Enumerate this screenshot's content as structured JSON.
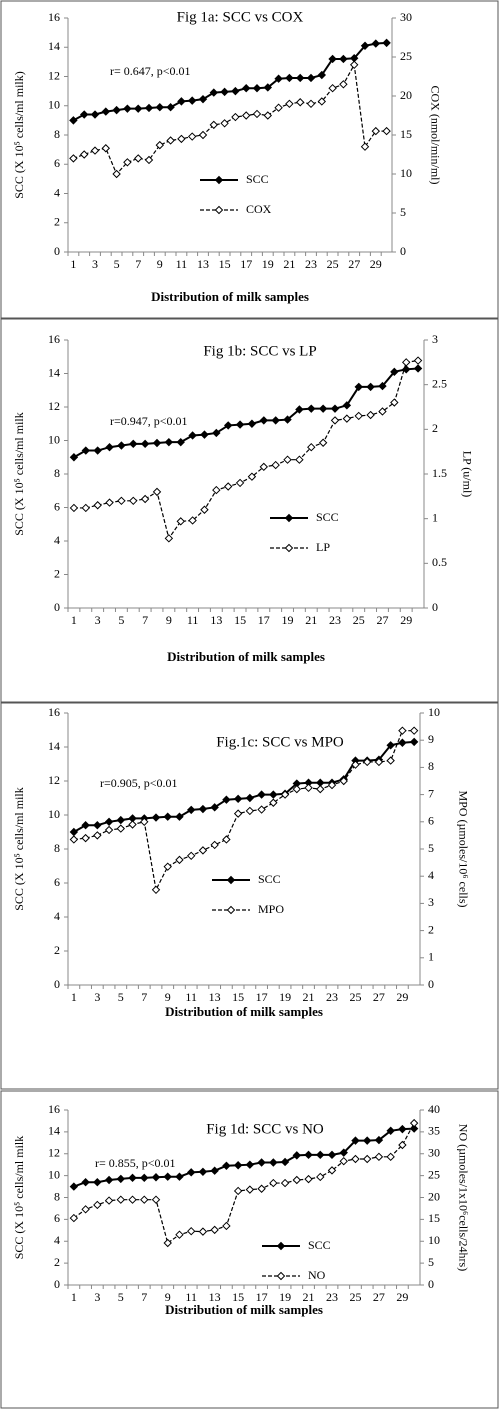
{
  "chart_data": [
    {
      "type": "line",
      "title": "Fig 1a: SCC vs COX",
      "annotation": "r= 0.647, p<0.01",
      "x_label": "Distribution of milk samples",
      "y_label": "SCC (X 10⁵ cells/ml milk)",
      "y2_label": "COX (nmol/min/ml)",
      "categories": [
        "1",
        null,
        "3",
        null,
        "5",
        null,
        "7",
        null,
        "9",
        null,
        "11",
        null,
        "13",
        null,
        "15",
        null,
        "17",
        null,
        "19",
        null,
        "21",
        null,
        "23",
        null,
        "25",
        null,
        "27",
        null,
        "29",
        null
      ],
      "ylim": [
        0,
        16
      ],
      "yticks": [
        0,
        2,
        4,
        6,
        8,
        10,
        12,
        14,
        16
      ],
      "y2lim": [
        0,
        30
      ],
      "y2ticks": [
        0,
        5,
        10,
        15,
        20,
        25,
        30
      ],
      "series": [
        {
          "name": "SCC",
          "color": "#000000",
          "dashed": false,
          "marker_filled": true,
          "values": [
            9.0,
            9.4,
            9.4,
            9.6,
            9.7,
            9.8,
            9.8,
            9.85,
            9.9,
            9.9,
            10.3,
            10.35,
            10.45,
            10.9,
            10.95,
            11.0,
            11.2,
            11.2,
            11.25,
            11.85,
            11.9,
            11.9,
            11.9,
            12.1,
            13.2,
            13.2,
            13.25,
            14.1,
            14.25,
            14.3
          ]
        },
        {
          "name": "COX",
          "color": "#000000",
          "dashed": true,
          "marker_filled": false,
          "axis": "y2",
          "values": [
            12,
            12.5,
            13,
            13.3,
            10,
            11.5,
            12,
            11.8,
            13.7,
            14.3,
            14.5,
            14.8,
            15,
            16.3,
            16.5,
            17.3,
            17.5,
            17.7,
            17.5,
            18.5,
            19,
            19.2,
            19,
            19.3,
            21,
            21.5,
            24,
            13.5,
            15.5,
            15.5
          ]
        }
      ]
    },
    {
      "type": "line",
      "title": "Fig 1b: SCC vs LP",
      "annotation": "r=0.947, p<0.01",
      "x_label": "Distribution of milk samples",
      "y_label": "SCC (X 10⁵ cells/ml milk",
      "y2_label": "LP (u/ml)",
      "categories": [
        "1",
        null,
        "3",
        null,
        "5",
        null,
        "7",
        null,
        "9",
        null,
        "11",
        null,
        "13",
        null,
        "15",
        null,
        "17",
        null,
        "19",
        null,
        "21",
        null,
        "23",
        null,
        "25",
        null,
        "27",
        null,
        "29",
        null
      ],
      "ylim": [
        0,
        16
      ],
      "yticks": [
        0,
        2,
        4,
        6,
        8,
        10,
        12,
        14,
        16
      ],
      "y2lim": [
        0,
        3
      ],
      "y2ticks": [
        0,
        0.5,
        1,
        1.5,
        2,
        2.5,
        3
      ],
      "series": [
        {
          "name": "SCC",
          "color": "#000000",
          "dashed": false,
          "marker_filled": true,
          "values": [
            9.0,
            9.4,
            9.4,
            9.6,
            9.7,
            9.8,
            9.8,
            9.85,
            9.9,
            9.9,
            10.3,
            10.35,
            10.45,
            10.9,
            10.95,
            11.0,
            11.2,
            11.2,
            11.25,
            11.85,
            11.9,
            11.9,
            11.9,
            12.1,
            13.2,
            13.2,
            13.25,
            14.1,
            14.25,
            14.3
          ]
        },
        {
          "name": "LP",
          "color": "#000000",
          "dashed": true,
          "marker_filled": false,
          "axis": "y2",
          "values": [
            1.12,
            1.12,
            1.15,
            1.18,
            1.2,
            1.2,
            1.22,
            1.3,
            0.78,
            0.97,
            0.98,
            1.1,
            1.32,
            1.36,
            1.4,
            1.47,
            1.58,
            1.6,
            1.66,
            1.66,
            1.8,
            1.85,
            2.1,
            2.12,
            2.15,
            2.16,
            2.2,
            2.3,
            2.75,
            2.77
          ]
        }
      ]
    },
    {
      "type": "line",
      "title": "Fig.1c: SCC vs MPO",
      "annotation": "r=0.905, p<0.01",
      "x_label": "Distribution of milk samples",
      "y_label": "SCC (X 10⁵ cells/ml milk",
      "y2_label": "MPO (µmoles/10⁶ cells)",
      "categories": [
        "1",
        null,
        "3",
        null,
        "5",
        null,
        "7",
        null,
        "9",
        null,
        "11",
        null,
        "13",
        null,
        "15",
        null,
        "17",
        null,
        "19",
        null,
        "21",
        null,
        "23",
        null,
        "25",
        null,
        "27",
        null,
        "29",
        null
      ],
      "ylim": [
        0,
        16
      ],
      "yticks": [
        0,
        2,
        4,
        6,
        8,
        10,
        12,
        14,
        16
      ],
      "y2lim": [
        0,
        10
      ],
      "y2ticks": [
        0,
        1,
        2,
        3,
        4,
        5,
        6,
        7,
        8,
        9,
        10
      ],
      "series": [
        {
          "name": "SCC",
          "color": "#000000",
          "dashed": false,
          "marker_filled": true,
          "values": [
            9.0,
            9.4,
            9.4,
            9.6,
            9.7,
            9.8,
            9.8,
            9.85,
            9.9,
            9.9,
            10.3,
            10.35,
            10.45,
            10.9,
            10.95,
            11.0,
            11.2,
            11.2,
            11.25,
            11.85,
            11.9,
            11.9,
            11.9,
            12.1,
            13.2,
            13.2,
            13.25,
            14.1,
            14.25,
            14.3
          ]
        },
        {
          "name": "MPO",
          "color": "#000000",
          "dashed": true,
          "marker_filled": false,
          "axis": "y2",
          "values": [
            5.35,
            5.4,
            5.5,
            5.7,
            5.75,
            5.9,
            6.0,
            3.5,
            4.35,
            4.6,
            4.75,
            4.95,
            5.15,
            5.35,
            6.3,
            6.4,
            6.45,
            6.7,
            7.0,
            7.2,
            7.25,
            7.2,
            7.35,
            7.5,
            8.1,
            8.2,
            8.2,
            8.25,
            9.35,
            9.35
          ]
        }
      ]
    },
    {
      "type": "line",
      "title": "Fig 1d: SCC vs NO",
      "annotation": "r= 0.855, p<0.01",
      "x_label": "Distribution of milk samples",
      "y_label": "SCC (X 10⁵ cells/ml milk",
      "y2_label": "NO (µmoles/1x10⁶cells/24hrs)",
      "categories": [
        "1",
        null,
        "3",
        null,
        "5",
        null,
        "7",
        null,
        "9",
        null,
        "11",
        null,
        "13",
        null,
        "15",
        null,
        "17",
        null,
        "19",
        null,
        "21",
        null,
        "23",
        null,
        "25",
        null,
        "27",
        null,
        "29",
        null
      ],
      "ylim": [
        0,
        16
      ],
      "yticks": [
        0,
        2,
        4,
        6,
        8,
        10,
        12,
        14,
        16
      ],
      "y2lim": [
        0,
        40
      ],
      "y2ticks": [
        0,
        5,
        10,
        15,
        20,
        25,
        30,
        35,
        40
      ],
      "series": [
        {
          "name": "SCC",
          "color": "#000000",
          "dashed": false,
          "marker_filled": true,
          "values": [
            9.0,
            9.4,
            9.4,
            9.6,
            9.7,
            9.8,
            9.8,
            9.85,
            9.9,
            9.9,
            10.3,
            10.35,
            10.45,
            10.9,
            10.95,
            11.0,
            11.2,
            11.2,
            11.25,
            11.85,
            11.9,
            11.9,
            11.9,
            12.1,
            13.2,
            13.2,
            13.25,
            14.1,
            14.25,
            14.3
          ]
        },
        {
          "name": "NO",
          "color": "#000000",
          "dashed": true,
          "marker_filled": false,
          "axis": "y2",
          "values": [
            15.3,
            17.3,
            18.3,
            19.3,
            19.5,
            19.5,
            19.5,
            19.5,
            9.6,
            11.5,
            12.3,
            12.2,
            12.6,
            13.5,
            21.5,
            21.8,
            22.0,
            23.3,
            23.3,
            24.0,
            24.2,
            24.7,
            26.2,
            28.3,
            28.8,
            28.8,
            29.3,
            29.3,
            32.0,
            37.0
          ]
        }
      ]
    }
  ]
}
